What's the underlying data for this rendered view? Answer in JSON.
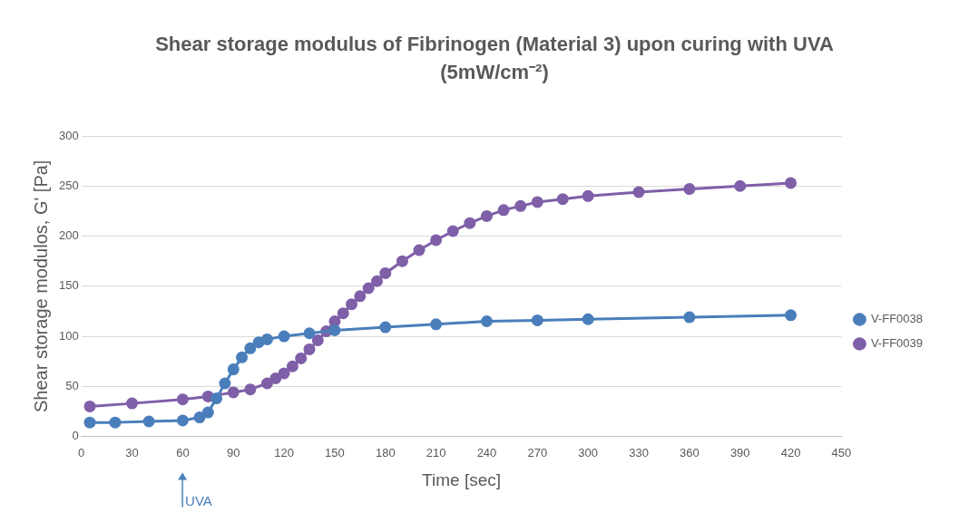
{
  "chart_data": {
    "type": "line",
    "title": "Shear storage modulus of Fibrinogen (Material 3) upon curing with UVA (5mW/cm⁻²)",
    "xlabel": "Time [sec]",
    "ylabel": "Shear storage modulos, G' [Pa]",
    "xlim": [
      0,
      450
    ],
    "xticks": [
      0,
      30,
      60,
      90,
      120,
      150,
      180,
      210,
      240,
      270,
      300,
      330,
      360,
      390,
      420,
      450
    ],
    "ylim": [
      0,
      300
    ],
    "yticks": [
      0,
      50,
      100,
      150,
      200,
      250,
      300
    ],
    "grid": "y",
    "legend": "right",
    "marker": "circle",
    "line_style": "solid",
    "annotations": [
      "UVA"
    ],
    "series": [
      {
        "name": "V-FF0038",
        "color": "#4a7ebb",
        "x": [
          5,
          20,
          40,
          60,
          70,
          75,
          80,
          85,
          90,
          95,
          100,
          105,
          110,
          120,
          135,
          150,
          180,
          210,
          240,
          270,
          300,
          360,
          420
        ],
        "values": [
          14,
          14,
          15,
          16,
          19,
          24,
          38,
          53,
          67,
          79,
          88,
          94,
          97,
          100,
          103,
          106,
          109,
          112,
          115,
          116,
          117,
          119,
          121
        ]
      },
      {
        "name": "V-FF0039",
        "color": "#7f5fa8",
        "x": [
          5,
          30,
          60,
          75,
          90,
          100,
          110,
          115,
          120,
          125,
          130,
          135,
          140,
          145,
          150,
          155,
          160,
          165,
          170,
          175,
          180,
          190,
          200,
          210,
          220,
          230,
          240,
          250,
          260,
          270,
          285,
          300,
          330,
          360,
          390,
          420
        ],
        "values": [
          30,
          33,
          37,
          40,
          44,
          47,
          53,
          58,
          63,
          70,
          78,
          87,
          96,
          105,
          115,
          123,
          132,
          140,
          148,
          155,
          163,
          175,
          186,
          196,
          205,
          213,
          220,
          226,
          230,
          234,
          237,
          240,
          244,
          247,
          250,
          253
        ]
      }
    ]
  }
}
